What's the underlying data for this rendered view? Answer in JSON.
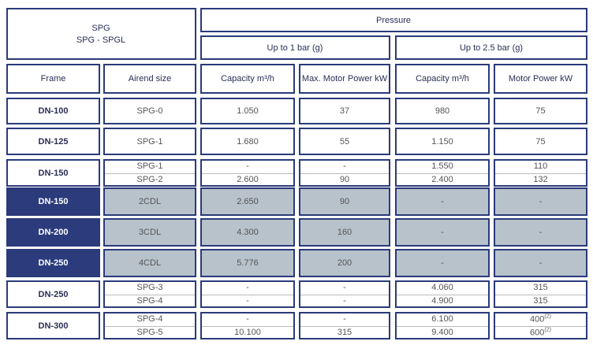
{
  "header": {
    "title1": "SPG",
    "title2": "SPG - SPGL",
    "pressure": "Pressure",
    "low": "Up to 1 bar (g)",
    "high": "Up to 2.5 bar (g)"
  },
  "columns": [
    "Frame",
    "Airend size",
    "Capacity m³/h",
    "Max. Motor Power kW",
    "Capacity m³/h",
    "Motor Power kW"
  ],
  "groups": [
    {
      "frame": "DN-100",
      "highlight": false,
      "rows": [
        [
          "SPG-0",
          "1.050",
          "37",
          "980",
          "75"
        ]
      ]
    },
    {
      "frame": "DN-125",
      "highlight": false,
      "rows": [
        [
          "SPG-1",
          "1.680",
          "55",
          "1.150",
          "75"
        ]
      ]
    },
    {
      "frame": "DN-150",
      "highlight": false,
      "rows": [
        [
          "SPG-1",
          "-",
          "-",
          "1.550",
          "110"
        ],
        [
          "SPG-2",
          "2.600",
          "90",
          "2.400",
          "132"
        ]
      ]
    },
    {
      "frame": "DN-150",
      "highlight": true,
      "rows": [
        [
          "2CDL",
          "2.650",
          "90",
          "-",
          "-"
        ]
      ]
    },
    {
      "frame": "DN-200",
      "highlight": true,
      "rows": [
        [
          "3CDL",
          "4.300",
          "160",
          "-",
          "-"
        ]
      ]
    },
    {
      "frame": "DN-250",
      "highlight": true,
      "rows": [
        [
          "4CDL",
          "5.776",
          "200",
          "-",
          "-"
        ]
      ]
    },
    {
      "frame": "DN-250",
      "highlight": false,
      "rows": [
        [
          "SPG-3",
          "-",
          "-",
          "4.060",
          "315"
        ],
        [
          "SPG-4",
          "-",
          "-",
          "4.900",
          "315"
        ]
      ]
    },
    {
      "frame": "DN-300",
      "highlight": false,
      "rows": [
        [
          "SPG-4",
          "-",
          "-",
          "6.100",
          {
            "text": "400",
            "note": "(2)"
          }
        ],
        [
          "SPG-5",
          "10.100",
          "315",
          "9.400",
          {
            "text": "600",
            "note": "(2)"
          }
        ]
      ]
    }
  ]
}
